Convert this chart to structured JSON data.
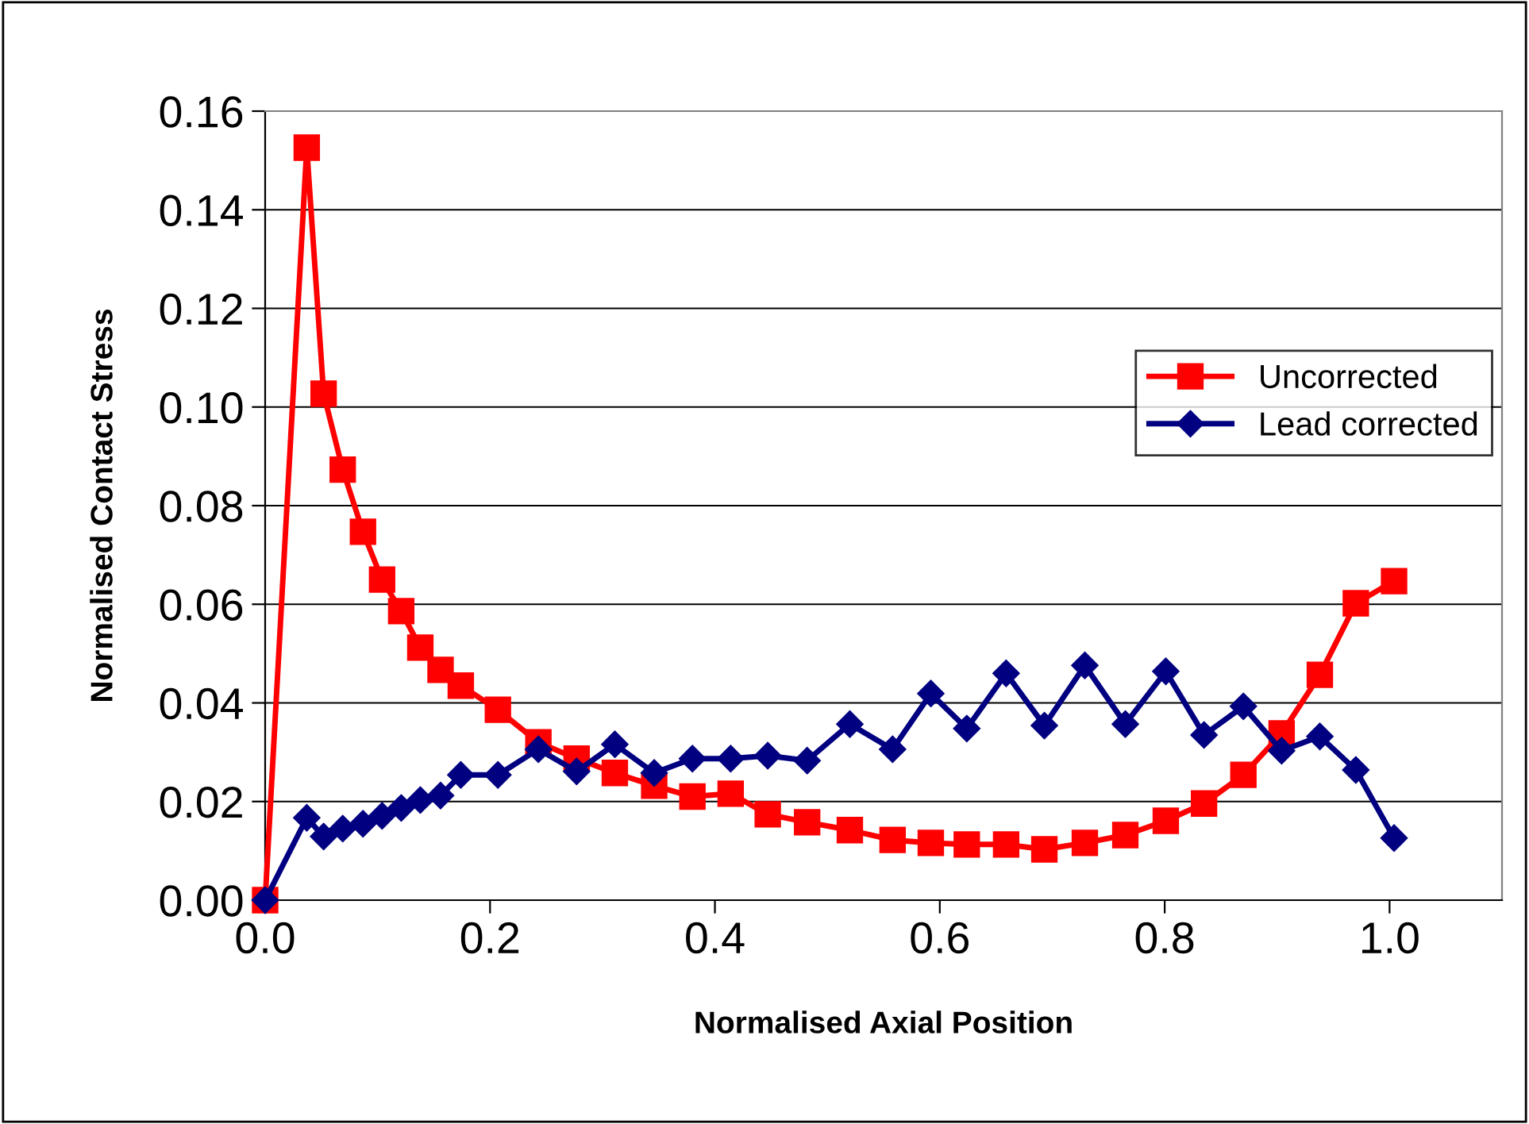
{
  "chart_data": {
    "type": "line",
    "xlabel": "Normalised Axial Position",
    "ylabel": "Normalised Contact Stress",
    "xlim": [
      0,
      1.1
    ],
    "xticks": [
      {
        "value": 0,
        "label": "0.0"
      },
      {
        "value": 0.2,
        "label": "0.2"
      },
      {
        "value": 0.4,
        "label": "0.4"
      },
      {
        "value": 0.6,
        "label": "0.6"
      },
      {
        "value": 0.8,
        "label": "0.8"
      },
      {
        "value": 1.0,
        "label": "1.0"
      }
    ],
    "ylim": [
      0,
      0.16
    ],
    "yticks": [
      {
        "value": 0,
        "label": "0.00"
      },
      {
        "value": 0.02,
        "label": "0.02"
      },
      {
        "value": 0.04,
        "label": "0.04"
      },
      {
        "value": 0.06,
        "label": "0.06"
      },
      {
        "value": 0.08,
        "label": "0.08"
      },
      {
        "value": 0.1,
        "label": "0.10"
      },
      {
        "value": 0.12,
        "label": "0.12"
      },
      {
        "value": 0.14,
        "label": "0.14"
      },
      {
        "value": 0.16,
        "label": "0.16"
      }
    ],
    "x": [
      0.0,
      0.037,
      0.052,
      0.069,
      0.087,
      0.104,
      0.121,
      0.138,
      0.156,
      0.174,
      0.207,
      0.243,
      0.277,
      0.311,
      0.346,
      0.38,
      0.414,
      0.447,
      0.482,
      0.52,
      0.558,
      0.592,
      0.624,
      0.659,
      0.693,
      0.729,
      0.765,
      0.801,
      0.835,
      0.87,
      0.904,
      0.938,
      0.97,
      1.004
    ],
    "grid": "y",
    "legend": "right",
    "line_style": "solid",
    "series": [
      {
        "name": "Uncorrected",
        "color": "#ff0000",
        "marker": "square",
        "values": [
          0.0,
          0.1526,
          0.1027,
          0.0873,
          0.0747,
          0.065,
          0.0586,
          0.0512,
          0.0467,
          0.0435,
          0.0386,
          0.032,
          0.0287,
          0.0258,
          0.0232,
          0.021,
          0.0216,
          0.0174,
          0.0158,
          0.0142,
          0.0122,
          0.0116,
          0.0113,
          0.0113,
          0.0103,
          0.0116,
          0.0132,
          0.0161,
          0.0196,
          0.0254,
          0.0338,
          0.0457,
          0.0602,
          0.0647
        ]
      },
      {
        "name": "Lead corrected",
        "color": "#000080",
        "marker": "diamond",
        "values": [
          0.0,
          0.0167,
          0.0129,
          0.0145,
          0.0155,
          0.0171,
          0.0187,
          0.0203,
          0.0212,
          0.0254,
          0.0254,
          0.0306,
          0.0261,
          0.0316,
          0.0258,
          0.0287,
          0.0287,
          0.0293,
          0.0283,
          0.0357,
          0.0306,
          0.0419,
          0.0348,
          0.046,
          0.0354,
          0.0476,
          0.0357,
          0.0464,
          0.0335,
          0.0393,
          0.0303,
          0.0332,
          0.0264,
          0.0126
        ]
      }
    ]
  }
}
